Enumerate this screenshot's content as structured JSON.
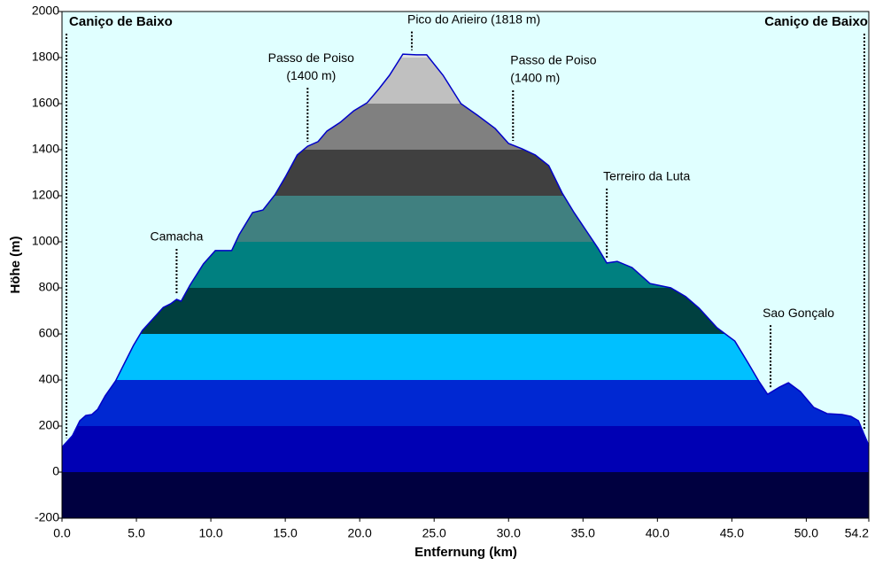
{
  "chart_data": {
    "type": "elevation-profile",
    "x_label": "Entfernung  (km)",
    "y_label": "Höhe (m)",
    "xlim": [
      0,
      54.2
    ],
    "ylim": [
      -200,
      2000
    ],
    "xticks": [
      {
        "value": 0,
        "label": "0.0"
      },
      {
        "value": 5,
        "label": "5.0"
      },
      {
        "value": 10,
        "label": "10.0"
      },
      {
        "value": 15,
        "label": "15.0"
      },
      {
        "value": 20,
        "label": "20.0"
      },
      {
        "value": 25,
        "label": "25.0"
      },
      {
        "value": 30,
        "label": "30.0"
      },
      {
        "value": 35,
        "label": "35.0"
      },
      {
        "value": 40,
        "label": "40.0"
      },
      {
        "value": 45,
        "label": "45.0"
      },
      {
        "value": 50,
        "label": "50.0"
      },
      54.2
    ],
    "yticks": [
      -200,
      0,
      200,
      400,
      600,
      800,
      1000,
      1200,
      1400,
      1600,
      1800,
      2000
    ],
    "band_colors": [
      "#000040",
      "#0000b4",
      "#0028d2",
      "#00c0ff",
      "#004040",
      "#008080",
      "#408080",
      "#404040",
      "#808080",
      "#c0c0c0",
      "#e0e0e0"
    ],
    "line_color": "#0000c8",
    "background": "#e0ffff",
    "x": [
      0,
      0.7,
      1.2,
      1.6,
      2.0,
      2.4,
      2.9,
      3.6,
      4.2,
      4.8,
      5.4,
      6.1,
      6.8,
      7.3,
      7.7,
      8.0,
      8.6,
      9.5,
      10.3,
      11.4,
      11.9,
      12.8,
      13.5,
      14.3,
      15.0,
      15.8,
      16.5,
      17.2,
      17.8,
      18.7,
      19.6,
      20.5,
      21.3,
      22.0,
      22.9,
      23.8,
      24.5,
      25.6,
      26.8,
      27.9,
      29.1,
      30.0,
      30.9,
      31.8,
      32.7,
      33.6,
      34.4,
      35.2,
      36.0,
      36.6,
      37.3,
      38.3,
      39.5,
      40.9,
      41.9,
      42.8,
      44.0,
      45.2,
      46.1,
      46.8,
      47.4,
      48.2,
      48.8,
      49.6,
      50.5,
      51.4,
      52.4,
      53.0,
      53.5,
      54.2
    ],
    "values": [
      108,
      158,
      223,
      246,
      250,
      273,
      331,
      396,
      473,
      550,
      615,
      665,
      715,
      731,
      750,
      742,
      812,
      904,
      962,
      962,
      1031,
      1127,
      1138,
      1204,
      1281,
      1377,
      1415,
      1435,
      1481,
      1519,
      1569,
      1604,
      1665,
      1723,
      1815,
      1812,
      1812,
      1723,
      1600,
      1550,
      1492,
      1427,
      1404,
      1377,
      1331,
      1212,
      1127,
      1050,
      973,
      908,
      915,
      888,
      819,
      800,
      762,
      712,
      627,
      569,
      473,
      396,
      338,
      369,
      388,
      350,
      281,
      254,
      250,
      242,
      223,
      115
    ],
    "annotations": [
      {
        "text": [
          "Caniço de Baixo"
        ],
        "x": 0.3
      },
      {
        "text": [
          "Camacha"
        ],
        "x": 7.7
      },
      {
        "text": [
          "Passo de Poiso",
          "(1400 m)"
        ],
        "x": 16.5
      },
      {
        "text": [
          "Pico do Arieiro (1818 m)"
        ],
        "x": 23.5
      },
      {
        "text": [
          "Passo de Poiso",
          "(1400 m)"
        ],
        "x": 30.3
      },
      {
        "text": [
          "Terreiro da Luta"
        ],
        "x": 36.6
      },
      {
        "text": [
          "Sao Gonçalo"
        ],
        "x": 47.6
      },
      {
        "text": [
          "Caniço de Baixo"
        ],
        "x": 53.9
      }
    ]
  }
}
